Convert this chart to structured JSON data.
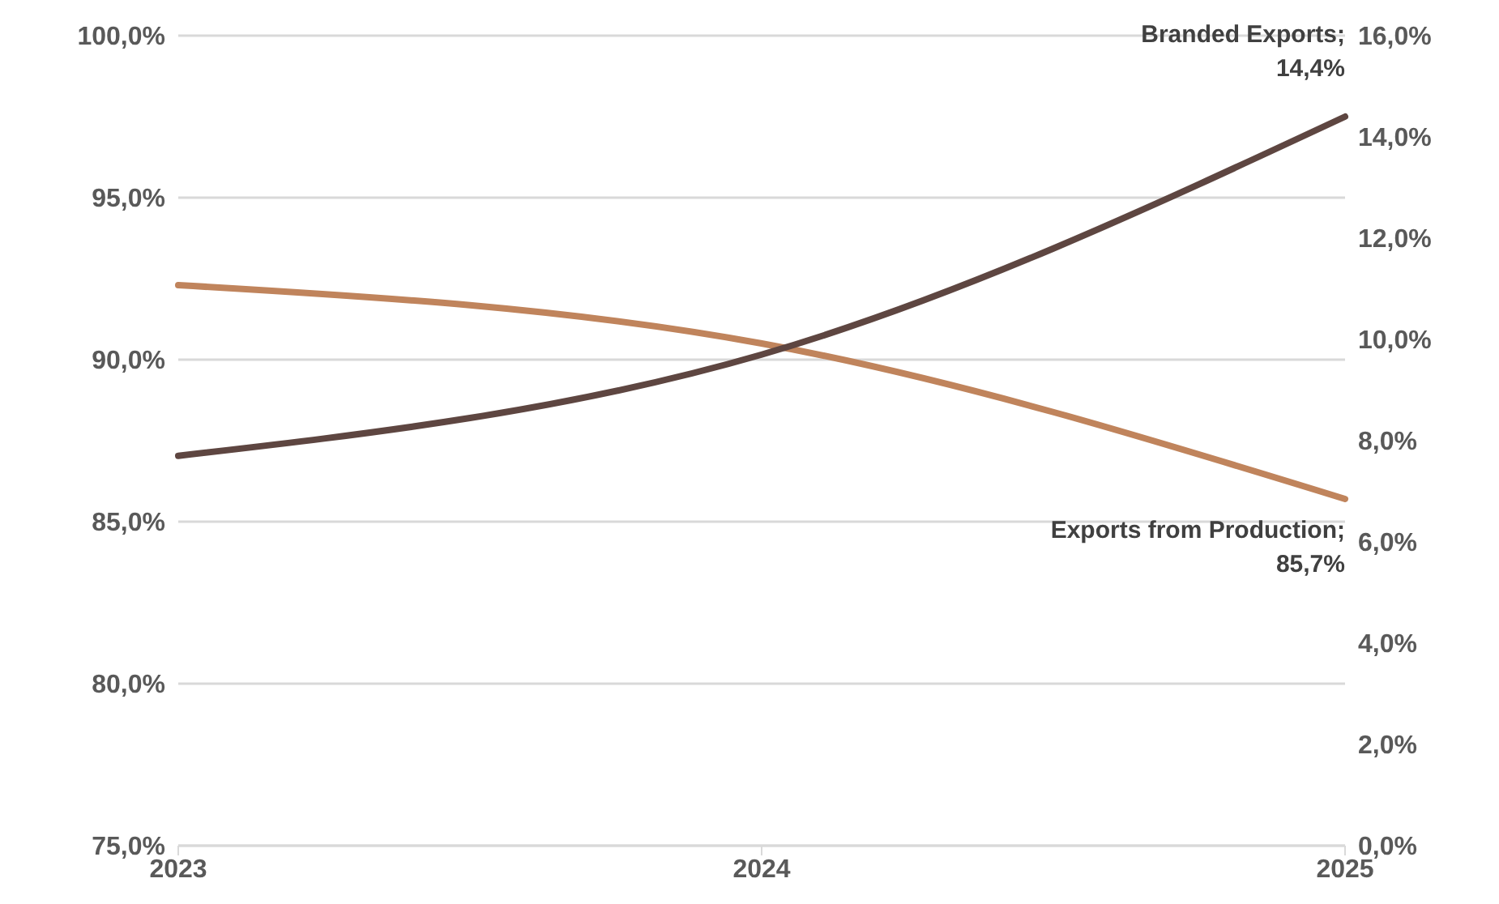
{
  "chart_data": {
    "type": "line",
    "categories": [
      "2023",
      "2024",
      "2025"
    ],
    "series": [
      {
        "color": "#c0845c",
        "values": [
          92.3,
          90.5,
          85.7
        ],
        "value_labels": [
          null,
          null,
          "Exports from Production; 85,7%"
        ]
      },
      {
        "color": "#5e4641",
        "axis": "y2",
        "values": [
          7.7,
          9.7,
          14.4
        ],
        "value_labels": [
          null,
          null,
          "Branded Exports; 14,4%"
        ]
      }
    ],
    "ylim": [
      75,
      100
    ],
    "yticks": [
      {
        "value": 75,
        "label": "75,0%"
      },
      {
        "value": 80,
        "label": "80,0%"
      },
      {
        "value": 85,
        "label": "85,0%"
      },
      {
        "value": 90,
        "label": "90,0%"
      },
      {
        "value": 95,
        "label": "95,0%"
      },
      {
        "value": 100,
        "label": "100,0%"
      }
    ],
    "y2lim": [
      0,
      16
    ],
    "y2ticks": [
      {
        "value": 0,
        "label": "0,0%"
      },
      {
        "value": 2,
        "label": "2,0%"
      },
      {
        "value": 4,
        "label": "4,0%"
      },
      {
        "value": 6,
        "label": "6,0%"
      },
      {
        "value": 8,
        "label": "8,0%"
      },
      {
        "value": 10,
        "label": "10,0%"
      },
      {
        "value": 12,
        "label": "12,0%"
      },
      {
        "value": 14,
        "label": "14,0%"
      },
      {
        "value": 16,
        "label": "16,0%"
      }
    ],
    "grid": "y",
    "legend": false,
    "marker": "none",
    "line_style": "solid"
  }
}
